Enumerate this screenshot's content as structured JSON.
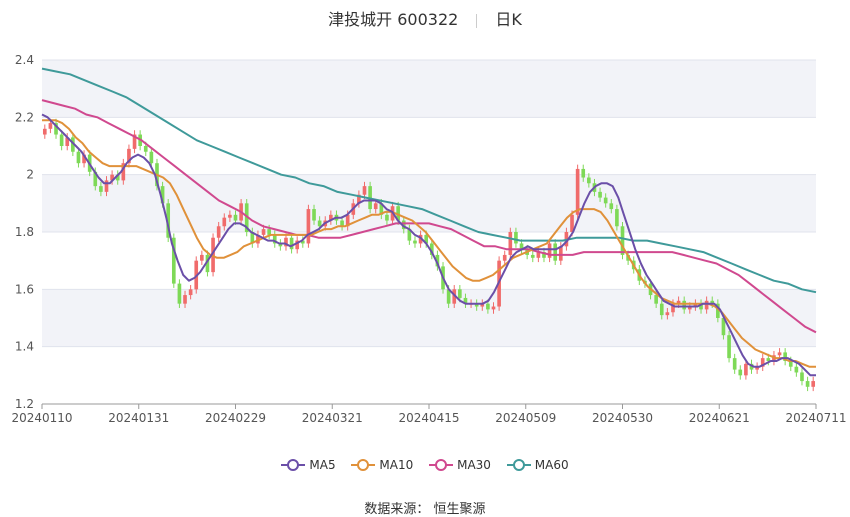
{
  "header": {
    "stock_name": "津投城开 600322",
    "period": "日K"
  },
  "source": "数据来源： 恒生聚源",
  "colors": {
    "up": "#f06b6b",
    "down": "#7ed957",
    "ma5": "#6b4fa8",
    "ma10": "#e0913a",
    "ma30": "#d0498f",
    "ma60": "#3f9a9a",
    "band": "#f2f3f8",
    "grid": "#e0e3ec"
  },
  "chart_data": {
    "type": "candlestick",
    "ylim": [
      1.2,
      2.4
    ],
    "yticks": [
      "1.2",
      "1.4",
      "1.6",
      "1.8",
      "2",
      "2.2",
      "2.4"
    ],
    "xticks": [
      "20240110",
      "20240131",
      "20240229",
      "20240321",
      "20240415",
      "20240509",
      "20240530",
      "20240621",
      "20240711"
    ],
    "legend": [
      {
        "key": "ma5",
        "label": "MA5"
      },
      {
        "key": "ma10",
        "label": "MA10"
      },
      {
        "key": "ma30",
        "label": "MA30"
      },
      {
        "key": "ma60",
        "label": "MA60"
      }
    ],
    "series": {
      "close": [
        2.16,
        2.18,
        2.14,
        2.1,
        2.13,
        2.08,
        2.04,
        2.07,
        2.01,
        1.96,
        1.94,
        1.98,
        2.0,
        1.98,
        2.04,
        2.09,
        2.14,
        2.1,
        2.08,
        2.04,
        1.96,
        1.9,
        1.78,
        1.62,
        1.55,
        1.58,
        1.6,
        1.7,
        1.72,
        1.66,
        1.78,
        1.82,
        1.85,
        1.86,
        1.84,
        1.9,
        1.8,
        1.76,
        1.79,
        1.81,
        1.79,
        1.76,
        1.75,
        1.78,
        1.74,
        1.77,
        1.76,
        1.88,
        1.84,
        1.82,
        1.84,
        1.86,
        1.84,
        1.82,
        1.86,
        1.9,
        1.93,
        1.96,
        1.88,
        1.9,
        1.86,
        1.84,
        1.89,
        1.84,
        1.81,
        1.77,
        1.76,
        1.79,
        1.76,
        1.72,
        1.68,
        1.6,
        1.55,
        1.6,
        1.57,
        1.55,
        1.55,
        1.54,
        1.55,
        1.53,
        1.54,
        1.7,
        1.72,
        1.8,
        1.76,
        1.74,
        1.72,
        1.71,
        1.73,
        1.71,
        1.76,
        1.7,
        1.75,
        1.8,
        1.86,
        2.02,
        1.99,
        1.97,
        1.94,
        1.92,
        1.9,
        1.88,
        1.82,
        1.72,
        1.7,
        1.67,
        1.63,
        1.62,
        1.58,
        1.55,
        1.51,
        1.52,
        1.55,
        1.56,
        1.53,
        1.54,
        1.55,
        1.53,
        1.56,
        1.55,
        1.5,
        1.44,
        1.36,
        1.32,
        1.3,
        1.34,
        1.32,
        1.33,
        1.36,
        1.35,
        1.37,
        1.38,
        1.35,
        1.33,
        1.31,
        1.28,
        1.26,
        1.28
      ],
      "ma5": [
        2.21,
        2.2,
        2.18,
        2.16,
        2.14,
        2.12,
        2.1,
        2.08,
        2.05,
        2.02,
        1.99,
        1.97,
        1.97,
        1.99,
        2.01,
        2.04,
        2.06,
        2.07,
        2.06,
        2.04,
        2.0,
        1.93,
        1.85,
        1.76,
        1.7,
        1.65,
        1.63,
        1.64,
        1.66,
        1.69,
        1.72,
        1.75,
        1.78,
        1.81,
        1.83,
        1.83,
        1.82,
        1.8,
        1.79,
        1.78,
        1.77,
        1.77,
        1.76,
        1.76,
        1.75,
        1.76,
        1.77,
        1.79,
        1.8,
        1.81,
        1.83,
        1.84,
        1.85,
        1.85,
        1.86,
        1.88,
        1.9,
        1.91,
        1.91,
        1.91,
        1.9,
        1.88,
        1.87,
        1.84,
        1.82,
        1.81,
        1.79,
        1.78,
        1.76,
        1.73,
        1.69,
        1.64,
        1.6,
        1.58,
        1.56,
        1.55,
        1.55,
        1.55,
        1.55,
        1.56,
        1.59,
        1.63,
        1.67,
        1.71,
        1.73,
        1.74,
        1.75,
        1.74,
        1.74,
        1.74,
        1.74,
        1.74,
        1.75,
        1.77,
        1.8,
        1.85,
        1.9,
        1.94,
        1.96,
        1.97,
        1.97,
        1.96,
        1.92,
        1.86,
        1.8,
        1.74,
        1.69,
        1.65,
        1.62,
        1.59,
        1.56,
        1.55,
        1.54,
        1.54,
        1.54,
        1.54,
        1.54,
        1.55,
        1.55,
        1.55,
        1.53,
        1.49,
        1.45,
        1.41,
        1.37,
        1.34,
        1.33,
        1.33,
        1.34,
        1.35,
        1.35,
        1.36,
        1.36,
        1.35,
        1.34,
        1.32,
        1.3,
        1.3
      ],
      "ma10": [
        2.19,
        2.19,
        2.19,
        2.18,
        2.16,
        2.13,
        2.11,
        2.08,
        2.06,
        2.04,
        2.03,
        2.03,
        2.03,
        2.03,
        2.03,
        2.02,
        2.01,
        2.0,
        1.99,
        1.97,
        1.93,
        1.88,
        1.83,
        1.78,
        1.74,
        1.72,
        1.71,
        1.71,
        1.72,
        1.73,
        1.75,
        1.76,
        1.77,
        1.78,
        1.79,
        1.79,
        1.79,
        1.79,
        1.79,
        1.79,
        1.79,
        1.8,
        1.81,
        1.81,
        1.82,
        1.82,
        1.83,
        1.84,
        1.85,
        1.86,
        1.86,
        1.87,
        1.87,
        1.86,
        1.85,
        1.84,
        1.82,
        1.8,
        1.77,
        1.74,
        1.71,
        1.68,
        1.66,
        1.64,
        1.63,
        1.63,
        1.64,
        1.65,
        1.67,
        1.69,
        1.71,
        1.72,
        1.73,
        1.74,
        1.75,
        1.76,
        1.79,
        1.82,
        1.85,
        1.87,
        1.88,
        1.88,
        1.88,
        1.87,
        1.84,
        1.8,
        1.76,
        1.72,
        1.68,
        1.64,
        1.61,
        1.59,
        1.57,
        1.56,
        1.55,
        1.55,
        1.55,
        1.55,
        1.55,
        1.55,
        1.54,
        1.52,
        1.49,
        1.46,
        1.43,
        1.41,
        1.39,
        1.38,
        1.37,
        1.36,
        1.36,
        1.35,
        1.35,
        1.34,
        1.33,
        1.33
      ],
      "ma30": [
        2.26,
        2.25,
        2.24,
        2.23,
        2.21,
        2.2,
        2.18,
        2.16,
        2.14,
        2.12,
        2.09,
        2.06,
        2.03,
        2.0,
        1.97,
        1.94,
        1.91,
        1.89,
        1.87,
        1.84,
        1.82,
        1.81,
        1.8,
        1.79,
        1.79,
        1.78,
        1.78,
        1.78,
        1.79,
        1.8,
        1.81,
        1.82,
        1.83,
        1.83,
        1.83,
        1.83,
        1.82,
        1.81,
        1.79,
        1.77,
        1.75,
        1.75,
        1.74,
        1.74,
        1.74,
        1.73,
        1.72,
        1.72,
        1.72,
        1.73,
        1.73,
        1.73,
        1.73,
        1.73,
        1.73,
        1.73,
        1.73,
        1.73,
        1.72,
        1.71,
        1.7,
        1.69,
        1.67,
        1.65,
        1.62,
        1.59,
        1.56,
        1.53,
        1.5,
        1.47,
        1.45
      ],
      "ma60": [
        2.37,
        2.36,
        2.35,
        2.33,
        2.31,
        2.29,
        2.27,
        2.24,
        2.21,
        2.18,
        2.15,
        2.12,
        2.1,
        2.08,
        2.06,
        2.04,
        2.02,
        2.0,
        1.99,
        1.97,
        1.96,
        1.94,
        1.93,
        1.92,
        1.91,
        1.9,
        1.89,
        1.88,
        1.86,
        1.84,
        1.82,
        1.8,
        1.79,
        1.78,
        1.77,
        1.77,
        1.77,
        1.77,
        1.78,
        1.78,
        1.78,
        1.78,
        1.77,
        1.77,
        1.76,
        1.75,
        1.74,
        1.73,
        1.71,
        1.69,
        1.67,
        1.65,
        1.63,
        1.62,
        1.6,
        1.59
      ]
    }
  }
}
